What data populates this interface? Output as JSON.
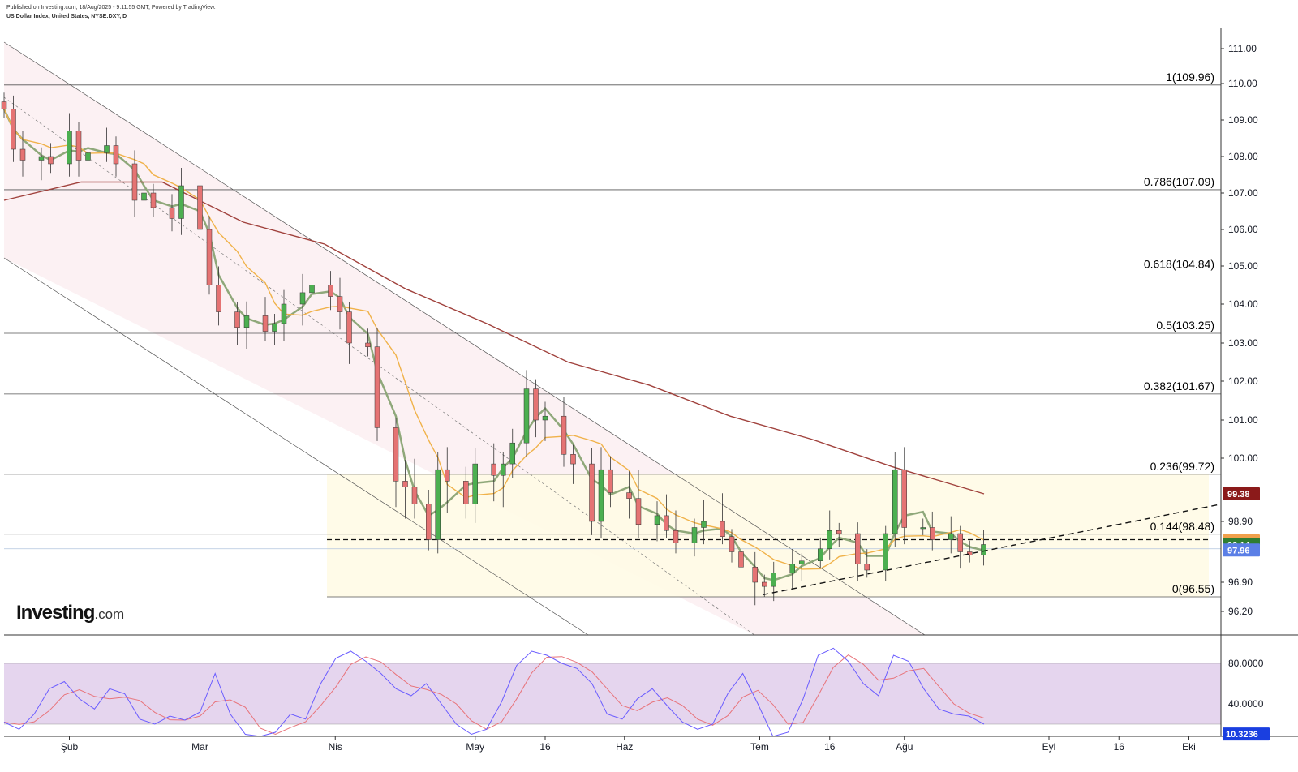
{
  "header": {
    "published": "Published on Investing.com, 18/Aug/2025 - 9:11:55 GMT, Powered by TradingView.",
    "symbol": "US Dollar Index, United States, NYSE:DXY, D"
  },
  "logo": {
    "brand": "Investing",
    "domain": ".com"
  },
  "colors": {
    "up": "#4caf50",
    "down": "#e57373",
    "ma_fast": "#8fa87a",
    "ma_mid": "#f0b24a",
    "ma_slow": "#a0413c",
    "stoch_k": "#6a5cff",
    "stoch_d": "#e8737a",
    "stoch_band": "#dcc7e8",
    "fib_zone": "#fffbe6",
    "channel": "#fbeef0",
    "tag_last": "#2e7d32",
    "tag_mid": "#f0a04b",
    "tag_slow": "#8b1a1a",
    "tag_blue": "#5b7fe6",
    "tag_stoch": "#1a3fe0"
  },
  "chart_data": [
    {
      "type": "candlestick",
      "title": "US Dollar Index, United States, NYSE:DXY, D",
      "ylim": [
        96.0,
        111.3
      ],
      "y_ticks": [
        {
          "value": 111.0,
          "label": "111.00"
        },
        {
          "value": 110.0,
          "label": "110.00"
        },
        {
          "value": 109.0,
          "label": "109.00"
        },
        {
          "value": 108.0,
          "label": "108.00"
        },
        {
          "value": 107.0,
          "label": "107.00"
        },
        {
          "value": 106.0,
          "label": "106.00"
        },
        {
          "value": 105.0,
          "label": "105.00"
        },
        {
          "value": 104.0,
          "label": "104.00"
        },
        {
          "value": 103.0,
          "label": "103.00"
        },
        {
          "value": 102.0,
          "label": "102.00"
        },
        {
          "value": 101.0,
          "label": "101.00"
        },
        {
          "value": 100.0,
          "label": "100.00"
        },
        {
          "value": 98.9,
          "label": "98.90"
        },
        {
          "value": 96.9,
          "label": "96.90"
        },
        {
          "value": 96.2,
          "label": "96.20"
        }
      ],
      "x_ticks": [
        {
          "date": "2025-02-03",
          "label": "Şub"
        },
        {
          "date": "2025-03-03",
          "label": "Mar"
        },
        {
          "date": "2025-04-01",
          "label": "Nis"
        },
        {
          "date": "2025-05-01",
          "label": "May"
        },
        {
          "date": "2025-05-16",
          "label": "16"
        },
        {
          "date": "2025-06-02",
          "label": "Haz"
        },
        {
          "date": "2025-07-01",
          "label": "Tem"
        },
        {
          "date": "2025-07-16",
          "label": "16"
        },
        {
          "date": "2025-08-01",
          "label": "Ağu"
        },
        {
          "date": "2025-09-01",
          "label": "Eyl"
        },
        {
          "date": "2025-09-16",
          "label": "16"
        },
        {
          "date": "2025-10-01",
          "label": "Eki"
        }
      ],
      "fib_levels": [
        {
          "value": 109.96,
          "label": "1(109.96)"
        },
        {
          "value": 107.09,
          "label": "0.786(107.09)"
        },
        {
          "value": 104.84,
          "label": "0.618(104.84)"
        },
        {
          "value": 103.25,
          "label": "0.5(103.25)"
        },
        {
          "value": 101.67,
          "label": "0.382(101.67)"
        },
        {
          "value": 99.72,
          "label": "0.236(99.72)"
        },
        {
          "value": 98.48,
          "label": "0.144(98.48)"
        },
        {
          "value": 96.55,
          "label": "0(96.55)"
        }
      ],
      "price_tags": [
        {
          "value": 99.38,
          "label": "99.38",
          "color_key": "tag_slow"
        },
        {
          "value": 98.26,
          "label": "98.26",
          "color_key": "tag_mid"
        },
        {
          "value": 98.14,
          "label": "98.14",
          "color_key": "tag_last"
        },
        {
          "value": 97.96,
          "label": "97.96",
          "color_key": "tag_blue"
        }
      ],
      "close_series": [
        [
          "2025-01-20",
          109.3
        ],
        [
          "2025-01-22",
          108.2
        ],
        [
          "2025-01-24",
          107.9
        ],
        [
          "2025-01-28",
          108.0
        ],
        [
          "2025-01-30",
          107.8
        ],
        [
          "2025-02-03",
          108.7
        ],
        [
          "2025-02-05",
          107.9
        ],
        [
          "2025-02-07",
          108.1
        ],
        [
          "2025-02-11",
          108.3
        ],
        [
          "2025-02-13",
          107.8
        ],
        [
          "2025-02-17",
          106.8
        ],
        [
          "2025-02-19",
          107.0
        ],
        [
          "2025-02-21",
          106.6
        ],
        [
          "2025-02-25",
          106.3
        ],
        [
          "2025-02-27",
          107.2
        ],
        [
          "2025-03-03",
          106.0
        ],
        [
          "2025-03-05",
          104.5
        ],
        [
          "2025-03-07",
          103.8
        ],
        [
          "2025-03-11",
          103.4
        ],
        [
          "2025-03-13",
          103.7
        ],
        [
          "2025-03-17",
          103.3
        ],
        [
          "2025-03-19",
          103.5
        ],
        [
          "2025-03-21",
          104.0
        ],
        [
          "2025-03-25",
          104.3
        ],
        [
          "2025-03-27",
          104.5
        ],
        [
          "2025-03-31",
          104.2
        ],
        [
          "2025-04-02",
          103.8
        ],
        [
          "2025-04-04",
          103.0
        ],
        [
          "2025-04-08",
          102.9
        ],
        [
          "2025-04-10",
          100.8
        ],
        [
          "2025-04-14",
          99.6
        ],
        [
          "2025-04-16",
          99.5
        ],
        [
          "2025-04-18",
          99.2
        ],
        [
          "2025-04-21",
          98.3
        ],
        [
          "2025-04-23",
          99.8
        ],
        [
          "2025-04-25",
          99.6
        ],
        [
          "2025-04-29",
          99.2
        ],
        [
          "2025-05-01",
          99.9
        ],
        [
          "2025-05-05",
          99.7
        ],
        [
          "2025-05-07",
          99.9
        ],
        [
          "2025-05-09",
          100.4
        ],
        [
          "2025-05-12",
          101.8
        ],
        [
          "2025-05-14",
          101.0
        ],
        [
          "2025-05-16",
          101.1
        ],
        [
          "2025-05-20",
          100.1
        ],
        [
          "2025-05-22",
          99.9
        ],
        [
          "2025-05-26",
          98.9
        ],
        [
          "2025-05-28",
          99.8
        ],
        [
          "2025-05-30",
          99.4
        ],
        [
          "2025-06-03",
          99.3
        ],
        [
          "2025-06-05",
          98.8
        ],
        [
          "2025-06-09",
          99.0
        ],
        [
          "2025-06-11",
          98.6
        ],
        [
          "2025-06-13",
          98.2
        ],
        [
          "2025-06-17",
          98.7
        ],
        [
          "2025-06-19",
          98.9
        ],
        [
          "2025-06-23",
          98.4
        ],
        [
          "2025-06-25",
          97.9
        ],
        [
          "2025-06-27",
          97.4
        ],
        [
          "2025-06-30",
          96.9
        ],
        [
          "2025-07-02",
          96.8
        ],
        [
          "2025-07-04",
          97.2
        ],
        [
          "2025-07-08",
          97.5
        ],
        [
          "2025-07-10",
          97.6
        ],
        [
          "2025-07-14",
          98.0
        ],
        [
          "2025-07-16",
          98.6
        ],
        [
          "2025-07-18",
          98.5
        ],
        [
          "2025-07-22",
          97.5
        ],
        [
          "2025-07-24",
          97.3
        ],
        [
          "2025-07-28",
          98.5
        ],
        [
          "2025-07-30",
          99.8
        ],
        [
          "2025-08-01",
          98.7
        ],
        [
          "2025-08-05",
          98.7
        ],
        [
          "2025-08-07",
          98.3
        ],
        [
          "2025-08-11",
          98.5
        ],
        [
          "2025-08-13",
          97.9
        ],
        [
          "2025-08-15",
          97.8
        ],
        [
          "2025-08-18",
          98.14
        ]
      ]
    },
    {
      "type": "line",
      "title": "",
      "ylim": [
        0,
        100
      ],
      "y_ticks": [
        {
          "value": 80,
          "label": "80.0000"
        },
        {
          "value": 40,
          "label": "40.0000"
        }
      ],
      "band": [
        20,
        80
      ],
      "value_tags": [
        {
          "value": 10.3236,
          "label": "10.3236",
          "color_key": "tag_stoch"
        }
      ]
    }
  ]
}
